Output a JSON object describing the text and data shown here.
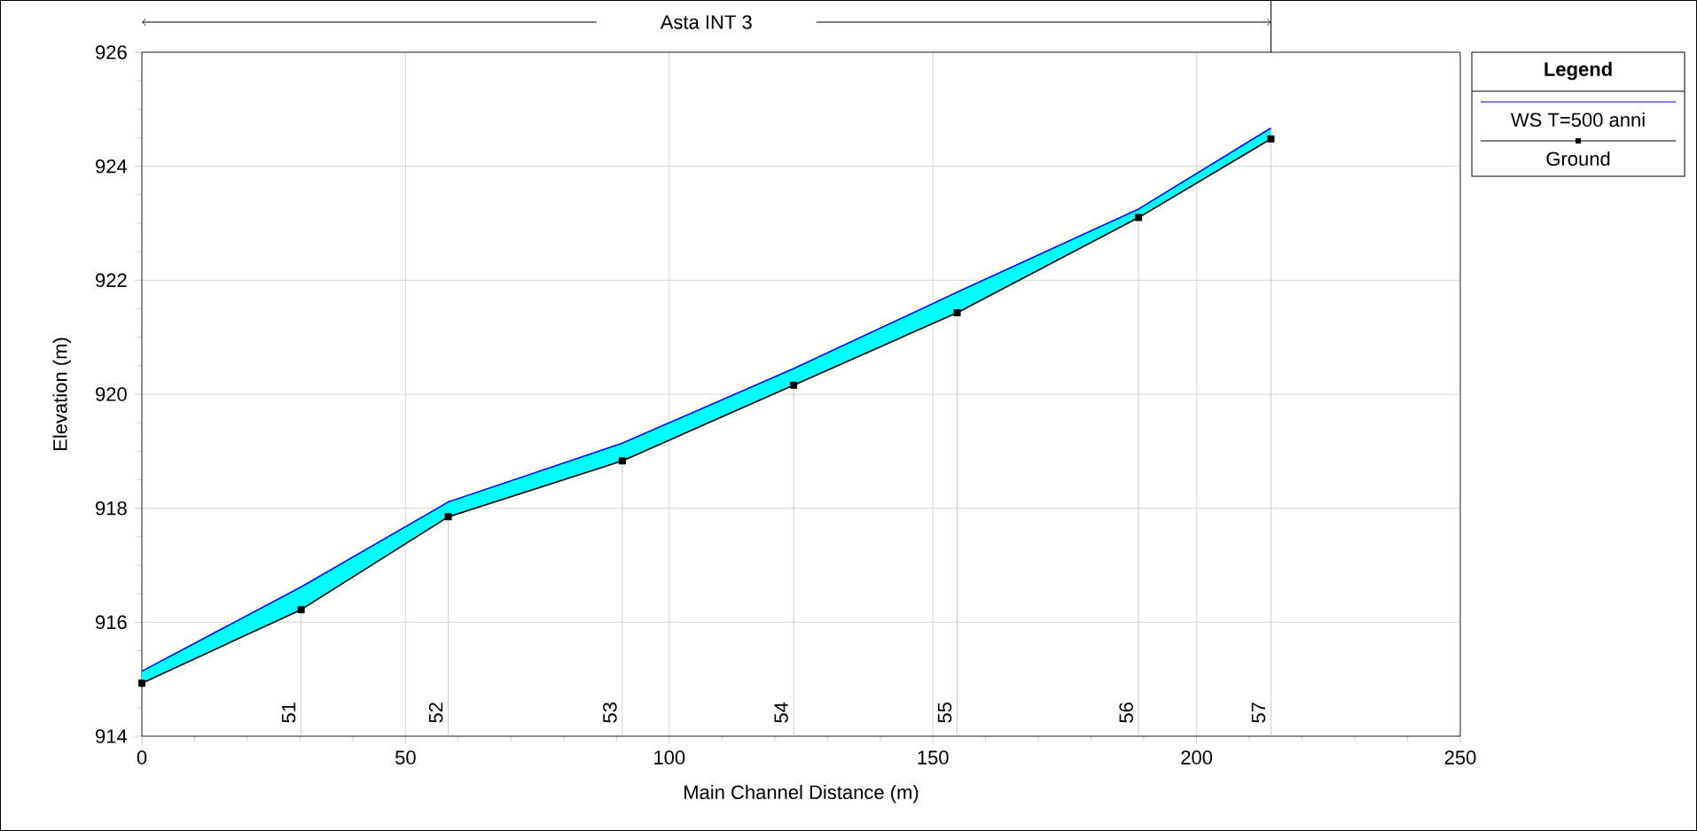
{
  "chart_data": {
    "type": "line",
    "title": "Asta INT 3",
    "xlabel": "Main Channel Distance (m)",
    "ylabel": "Elevation (m)",
    "legend_title": "Legend",
    "xlim": [
      0,
      250
    ],
    "xticks": [
      0,
      50,
      100,
      150,
      200,
      250
    ],
    "ylim": [
      914,
      926
    ],
    "yticks": [
      914,
      916,
      918,
      920,
      922,
      924,
      926
    ],
    "grid": true,
    "legend": "top right",
    "x": [
      0,
      30.2,
      58.1,
      91.1,
      123.6,
      154.6,
      189.0,
      214.1
    ],
    "series": [
      {
        "name": "WS  T=500 anni",
        "color": "#0000ff",
        "marker": "none",
        "values": [
          915.14,
          916.62,
          918.11,
          919.14,
          920.45,
          921.79,
          923.25,
          924.67
        ],
        "lower": [
          914.93,
          916.22,
          917.85,
          918.83,
          920.16,
          921.43,
          923.1,
          924.48
        ],
        "upper": [
          915.14,
          916.62,
          918.11,
          919.14,
          920.45,
          921.79,
          923.25,
          924.67
        ]
      },
      {
        "name": "Ground",
        "color": "#000000",
        "marker": "square",
        "values": [
          914.93,
          916.22,
          917.85,
          918.83,
          920.16,
          921.43,
          923.1,
          924.48
        ]
      }
    ],
    "annotations": [
      {
        "text": "51",
        "x": 30.2,
        "y": 916.22
      },
      {
        "text": "52",
        "x": 58.1,
        "y": 917.85
      },
      {
        "text": "53",
        "x": 91.1,
        "y": 918.83
      },
      {
        "text": "54",
        "x": 123.6,
        "y": 920.16
      },
      {
        "text": "55",
        "x": 154.6,
        "y": 921.43
      },
      {
        "text": "56",
        "x": 189.0,
        "y": 923.1
      },
      {
        "text": "57",
        "x": 214.1,
        "y": 924.48
      }
    ]
  }
}
